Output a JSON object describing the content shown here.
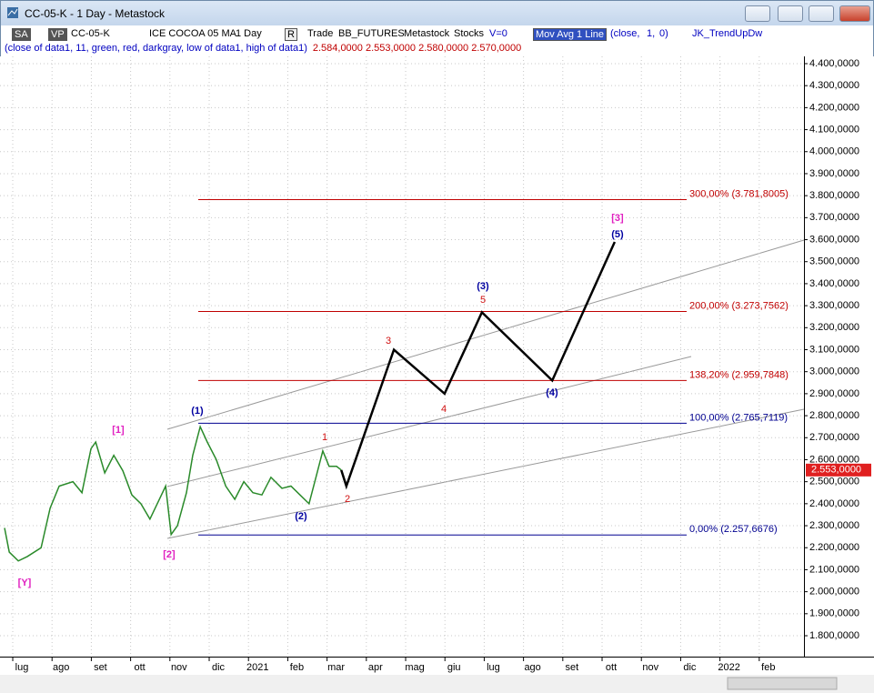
{
  "window": {
    "title": "CC-05-K - 1 Day - Metastock",
    "toolbar": [
      "SA",
      "VP",
      "CC-05-K",
      "ICE COCOA 05 MA",
      "1 Day",
      "R",
      "Trade",
      "BB_FUTURES",
      "Metastock",
      "Stocks",
      "V=0",
      "Mov Avg 1 Line",
      "(close,",
      "1,",
      "0)",
      "JK_TrendUpDw"
    ],
    "study": "(close of data1, 11, green, red, darkgray, low of data1, high of data1)",
    "ohlc": "2.584,0000 2.553,0000 2.580,0000 2.570,0000"
  },
  "chart_data": {
    "type": "line",
    "xlim": [
      -0.556,
      19.907
    ],
    "ylim": [
      1705,
      4433
    ],
    "grid": true,
    "xticks": [
      {
        "value": 0,
        "label": "lug"
      },
      {
        "value": 1,
        "label": "ago"
      },
      {
        "value": 2,
        "label": "set"
      },
      {
        "value": 3,
        "label": "ott"
      },
      {
        "value": 4,
        "label": "nov"
      },
      {
        "value": 5,
        "label": "dic"
      },
      {
        "value": 6,
        "label": "2021"
      },
      {
        "value": 7,
        "label": "feb"
      },
      {
        "value": 8,
        "label": "mar"
      },
      {
        "value": 9,
        "label": "apr"
      },
      {
        "value": 10,
        "label": "mag"
      },
      {
        "value": 11,
        "label": "giu"
      },
      {
        "value": 12,
        "label": "lug"
      },
      {
        "value": 13,
        "label": "ago"
      },
      {
        "value": 14,
        "label": "set"
      },
      {
        "value": 15,
        "label": "ott"
      },
      {
        "value": 16,
        "label": "nov"
      },
      {
        "value": 17,
        "label": "dic"
      },
      {
        "value": 18,
        "label": "2022"
      },
      {
        "value": 19,
        "label": "feb"
      }
    ],
    "yticks": [
      {
        "value": 1800,
        "label": "1.800,0000"
      },
      {
        "value": 1900,
        "label": "1.900,0000"
      },
      {
        "value": 2000,
        "label": "2.000,0000"
      },
      {
        "value": 2100,
        "label": "2.100,0000"
      },
      {
        "value": 2200,
        "label": "2.200,0000"
      },
      {
        "value": 2300,
        "label": "2.300,0000"
      },
      {
        "value": 2400,
        "label": "2.400,0000"
      },
      {
        "value": 2500,
        "label": "2.500,0000"
      },
      {
        "value": 2600,
        "label": "2.600,0000"
      },
      {
        "value": 2700,
        "label": "2.700,0000"
      },
      {
        "value": 2800,
        "label": "2.800,0000"
      },
      {
        "value": 2900,
        "label": "2.900,0000"
      },
      {
        "value": 3000,
        "label": "3.000,0000"
      },
      {
        "value": 3100,
        "label": "3.100,0000"
      },
      {
        "value": 3200,
        "label": "3.200,0000"
      },
      {
        "value": 3300,
        "label": "3.300,0000"
      },
      {
        "value": 3400,
        "label": "3.400,0000"
      },
      {
        "value": 3500,
        "label": "3.500,0000"
      },
      {
        "value": 3600,
        "label": "3.600,0000"
      },
      {
        "value": 3700,
        "label": "3.700,0000"
      },
      {
        "value": 3800,
        "label": "3.800,0000"
      },
      {
        "value": 3900,
        "label": "3.900,0000"
      },
      {
        "value": 4000,
        "label": "4.000,0000"
      },
      {
        "value": 4100,
        "label": "4.100,0000"
      },
      {
        "value": 4200,
        "label": "4.200,0000"
      },
      {
        "value": 4300,
        "label": "4.300,0000"
      },
      {
        "value": 4400,
        "label": "4.400,0000"
      }
    ],
    "series": [
      {
        "color": "#2a8a2a",
        "x": [
          -0.44,
          -0.32,
          -0.09,
          0.14,
          0.49,
          0.72,
          0.95,
          1.3,
          1.53,
          1.76,
          1.88,
          2.11,
          2.34,
          2.57,
          2.8,
          3.03,
          3.26,
          3.5,
          3.66,
          3.8,
          3.96,
          4.19,
          4.35,
          4.54,
          4.72,
          4.95,
          5.19,
          5.42,
          5.65,
          5.88,
          6.11,
          6.34,
          6.62,
          6.85,
          7.08,
          7.31,
          7.5,
          7.66,
          7.82,
          8.01,
          8.13
        ],
        "values": [
          2290,
          2180,
          2140,
          2160,
          2200,
          2380,
          2480,
          2500,
          2450,
          2650,
          2680,
          2540,
          2620,
          2550,
          2440,
          2400,
          2330,
          2420,
          2480,
          2260,
          2300,
          2450,
          2620,
          2750,
          2680,
          2600,
          2480,
          2420,
          2500,
          2450,
          2440,
          2520,
          2470,
          2480,
          2440,
          2400,
          2530,
          2640,
          2570,
          2570,
          2553
        ]
      },
      {
        "color": "#000000",
        "x": [
          8.13,
          8.26,
          9.47,
          10.76,
          11.71,
          13.5,
          15.09
        ],
        "values": [
          2553,
          2480,
          3100,
          2900,
          3270,
          2960,
          3590
        ]
      }
    ],
    "levels": [
      {
        "label": "300,00% (3.781,8005)",
        "value": 3781.8005,
        "color": "#c00000"
      },
      {
        "label": "200,00% (3.273,7562)",
        "value": 3273.7562,
        "color": "#c00000"
      },
      {
        "label": "138,20% (2.959,7848)",
        "value": 2959.7848,
        "color": "#c00000"
      },
      {
        "label": "100,00% (2.765,7119)",
        "value": 2765.7119,
        "color": "#000090"
      },
      {
        "label": "0,00% (2.257,6676)",
        "value": 2257.6676,
        "color": "#000090"
      }
    ],
    "last_price": {
      "value": 2553,
      "label": "2.553,0000"
    },
    "annotations": [
      {
        "text": "[Y]",
        "color": "#e020c0"
      },
      {
        "text": "[1]",
        "color": "#e020c0"
      },
      {
        "text": "[2]",
        "color": "#e020c0"
      },
      {
        "text": "[3]",
        "color": "#e020c0"
      },
      {
        "text": "(1)",
        "color": "#0000a0"
      },
      {
        "text": "(2)",
        "color": "#0000a0"
      },
      {
        "text": "(3)",
        "color": "#0000a0"
      },
      {
        "text": "(4)",
        "color": "#0000a0"
      },
      {
        "text": "(5)",
        "color": "#0000a0"
      },
      {
        "text": "1",
        "color": "#d01010"
      },
      {
        "text": "2",
        "color": "#d01010"
      },
      {
        "text": "3",
        "color": "#d01010"
      },
      {
        "text": "4",
        "color": "#d01010"
      },
      {
        "text": "5",
        "color": "#d01010"
      }
    ]
  }
}
